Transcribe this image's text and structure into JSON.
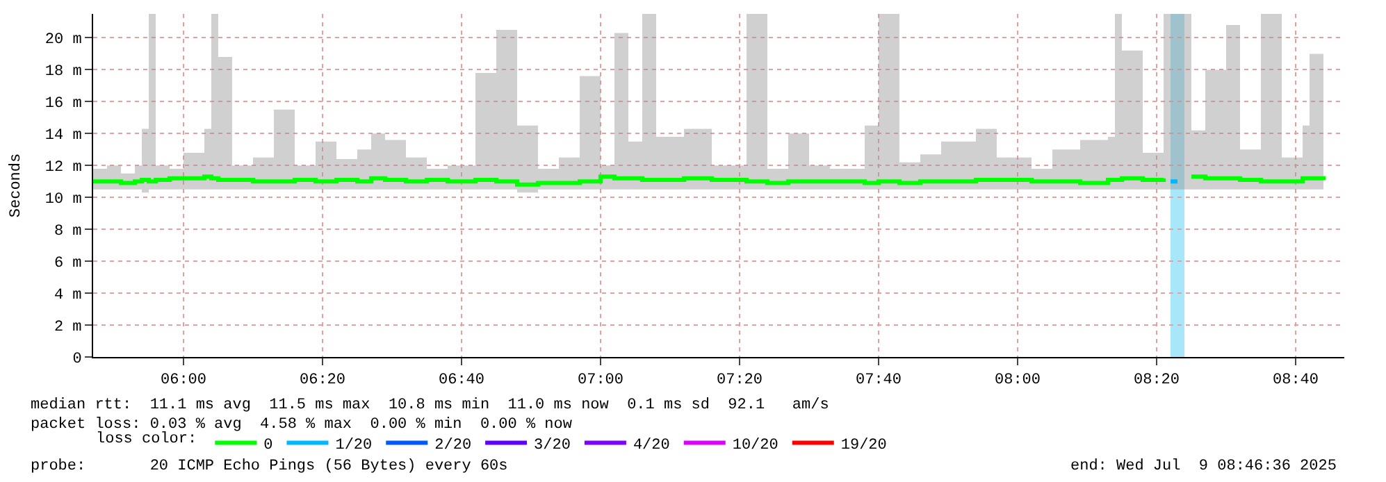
{
  "chart_data": {
    "type": "step",
    "ylabel": "Seconds",
    "legend_title": "loss color:",
    "legend": "bottom",
    "grid": true,
    "xlim": [
      "2025-07-09T05:47",
      "2025-07-09T08:47"
    ],
    "xticks": [
      {
        "value": "2025-07-09T06:00",
        "label": "06:00"
      },
      {
        "value": "2025-07-09T06:20",
        "label": "06:20"
      },
      {
        "value": "2025-07-09T06:40",
        "label": "06:40"
      },
      {
        "value": "2025-07-09T07:00",
        "label": "07:00"
      },
      {
        "value": "2025-07-09T07:20",
        "label": "07:20"
      },
      {
        "value": "2025-07-09T07:40",
        "label": "07:40"
      },
      {
        "value": "2025-07-09T08:00",
        "label": "08:00"
      },
      {
        "value": "2025-07-09T08:20",
        "label": "08:20"
      },
      {
        "value": "2025-07-09T08:40",
        "label": "08:40"
      }
    ],
    "ylim": [
      0,
      21.5
    ],
    "yticks": [
      0,
      {
        "value": 2,
        "label": "2 m"
      },
      {
        "value": 4,
        "label": "4 m"
      },
      {
        "value": 6,
        "label": "6 m"
      },
      {
        "value": 8,
        "label": "8 m"
      },
      {
        "value": 10,
        "label": "10 m"
      },
      {
        "value": 12,
        "label": "12 m"
      },
      {
        "value": 14,
        "label": "14 m"
      },
      {
        "value": 16,
        "label": "16 m"
      },
      {
        "value": 18,
        "label": "18 m"
      },
      {
        "value": 20,
        "label": "20 m"
      }
    ],
    "x": [
      "2025-07-09T05:47",
      "2025-07-09T05:49",
      "2025-07-09T05:51",
      "2025-07-09T05:53",
      "2025-07-09T05:54",
      "2025-07-09T05:55",
      "2025-07-09T05:56",
      "2025-07-09T05:58",
      "2025-07-09T06:00",
      "2025-07-09T06:03",
      "2025-07-09T06:04",
      "2025-07-09T06:05",
      "2025-07-09T06:07",
      "2025-07-09T06:10",
      "2025-07-09T06:13",
      "2025-07-09T06:16",
      "2025-07-09T06:19",
      "2025-07-09T06:22",
      "2025-07-09T06:25",
      "2025-07-09T06:27",
      "2025-07-09T06:29",
      "2025-07-09T06:32",
      "2025-07-09T06:35",
      "2025-07-09T06:38",
      "2025-07-09T06:42",
      "2025-07-09T06:45",
      "2025-07-09T06:48",
      "2025-07-09T06:51",
      "2025-07-09T06:54",
      "2025-07-09T06:57",
      "2025-07-09T07:00",
      "2025-07-09T07:02",
      "2025-07-09T07:04",
      "2025-07-09T07:06",
      "2025-07-09T07:08",
      "2025-07-09T07:12",
      "2025-07-09T07:16",
      "2025-07-09T07:21",
      "2025-07-09T07:24",
      "2025-07-09T07:27",
      "2025-07-09T07:30",
      "2025-07-09T07:33",
      "2025-07-09T07:38",
      "2025-07-09T07:40",
      "2025-07-09T07:43",
      "2025-07-09T07:46",
      "2025-07-09T07:49",
      "2025-07-09T07:54",
      "2025-07-09T07:57",
      "2025-07-09T08:02",
      "2025-07-09T08:05",
      "2025-07-09T08:09",
      "2025-07-09T08:13",
      "2025-07-09T08:14",
      "2025-07-09T08:15",
      "2025-07-09T08:18",
      "2025-07-09T08:21",
      "2025-07-09T08:23",
      "2025-07-09T08:25",
      "2025-07-09T08:27",
      "2025-07-09T08:30",
      "2025-07-09T08:32",
      "2025-07-09T08:35",
      "2025-07-09T08:38",
      "2025-07-09T08:41",
      "2025-07-09T08:42",
      "2025-07-09T08:44"
    ],
    "series": [
      {
        "name": "0",
        "color": "#00ff00",
        "values": [
          11.0,
          11.0,
          10.9,
          11.0,
          11.1,
          11.0,
          11.1,
          11.2,
          11.2,
          11.3,
          11.2,
          11.1,
          11.1,
          11.0,
          11.0,
          11.1,
          11.0,
          11.1,
          11.0,
          11.2,
          11.1,
          11.0,
          11.1,
          11.0,
          11.1,
          11.0,
          10.8,
          10.9,
          10.9,
          11.0,
          11.3,
          11.2,
          11.2,
          11.1,
          11.1,
          11.2,
          11.1,
          11.0,
          10.9,
          11.0,
          11.0,
          11.0,
          10.9,
          11.0,
          10.9,
          11.0,
          11.0,
          11.1,
          11.1,
          11.0,
          11.0,
          10.9,
          11.1,
          11.1,
          11.2,
          11.1,
          11.2,
          null,
          11.3,
          11.2,
          11.2,
          11.1,
          11.0,
          11.0,
          11.2,
          11.2,
          11.1
        ],
        "lower": [
          10.5,
          10.5,
          10.5,
          10.5,
          10.3,
          10.5,
          10.5,
          10.5,
          10.5,
          10.5,
          10.5,
          10.5,
          10.5,
          10.5,
          10.5,
          10.5,
          10.5,
          10.5,
          10.5,
          10.5,
          10.5,
          10.5,
          10.5,
          10.5,
          10.5,
          10.5,
          10.3,
          10.5,
          10.5,
          10.5,
          10.5,
          10.5,
          10.5,
          10.5,
          10.5,
          10.5,
          10.5,
          10.5,
          10.5,
          10.5,
          10.5,
          10.5,
          10.5,
          10.5,
          10.5,
          10.5,
          10.5,
          10.5,
          10.5,
          10.5,
          10.5,
          10.5,
          10.5,
          10.5,
          10.5,
          10.5,
          10.5,
          10.5,
          10.5,
          10.5,
          10.5,
          10.5,
          10.5,
          10.5,
          10.5,
          10.5,
          10.5
        ],
        "upper": [
          11.8,
          12.0,
          11.5,
          12.0,
          14.3,
          21.5,
          12.0,
          11.8,
          12.8,
          14.3,
          21.5,
          18.8,
          12.0,
          12.5,
          15.5,
          12.0,
          13.5,
          12.4,
          13.0,
          14.0,
          13.6,
          12.5,
          11.8,
          12.0,
          17.8,
          20.5,
          14.5,
          11.8,
          12.5,
          17.6,
          12.0,
          20.3,
          13.5,
          21.5,
          13.8,
          14.3,
          12.0,
          21.5,
          11.8,
          14.0,
          12.0,
          11.8,
          14.5,
          21.5,
          12.2,
          12.7,
          13.5,
          14.3,
          12.5,
          11.8,
          13.0,
          13.6,
          13.8,
          21.5,
          19.2,
          12.8,
          21.5,
          21.5,
          14.2,
          18.0,
          20.8,
          13.0,
          21.5,
          12.5,
          14.5,
          19.0,
          12.0
        ]
      },
      {
        "name": "1/20",
        "color": "#00b8ff",
        "x": [
          "2025-07-09T08:22",
          "2025-07-09T08:23"
        ],
        "values": [
          11.0,
          11.0
        ]
      },
      {
        "name": "2/20",
        "color": "#0059ff",
        "values": [
          null,
          null,
          null,
          null,
          null,
          null,
          null,
          null,
          null,
          null,
          null,
          null,
          null,
          null,
          null,
          null,
          null,
          null,
          null,
          null,
          null,
          null,
          null,
          null,
          null,
          null,
          null,
          null,
          null,
          null,
          null,
          null,
          null,
          null,
          null,
          null,
          null,
          null,
          null,
          null,
          null,
          null,
          null,
          null,
          null,
          null,
          null,
          null,
          null,
          null,
          null,
          null,
          null,
          null,
          null,
          null,
          null,
          null,
          null,
          null,
          null,
          null,
          null,
          null,
          null,
          null,
          null
        ]
      },
      {
        "name": "3/20",
        "color": "#5e00ff",
        "values": [
          null,
          null,
          null,
          null,
          null,
          null,
          null,
          null,
          null,
          null,
          null,
          null,
          null,
          null,
          null,
          null,
          null,
          null,
          null,
          null,
          null,
          null,
          null,
          null,
          null,
          null,
          null,
          null,
          null,
          null,
          null,
          null,
          null,
          null,
          null,
          null,
          null,
          null,
          null,
          null,
          null,
          null,
          null,
          null,
          null,
          null,
          null,
          null,
          null,
          null,
          null,
          null,
          null,
          null,
          null,
          null,
          null,
          null,
          null,
          null,
          null,
          null,
          null,
          null,
          null,
          null,
          null
        ]
      },
      {
        "name": "4/20",
        "color": "#7e00ff",
        "values": [
          null,
          null,
          null,
          null,
          null,
          null,
          null,
          null,
          null,
          null,
          null,
          null,
          null,
          null,
          null,
          null,
          null,
          null,
          null,
          null,
          null,
          null,
          null,
          null,
          null,
          null,
          null,
          null,
          null,
          null,
          null,
          null,
          null,
          null,
          null,
          null,
          null,
          null,
          null,
          null,
          null,
          null,
          null,
          null,
          null,
          null,
          null,
          null,
          null,
          null,
          null,
          null,
          null,
          null,
          null,
          null,
          null,
          null,
          null,
          null,
          null,
          null,
          null,
          null,
          null,
          null,
          null
        ]
      },
      {
        "name": "10/20",
        "color": "#dd00ff",
        "values": [
          null,
          null,
          null,
          null,
          null,
          null,
          null,
          null,
          null,
          null,
          null,
          null,
          null,
          null,
          null,
          null,
          null,
          null,
          null,
          null,
          null,
          null,
          null,
          null,
          null,
          null,
          null,
          null,
          null,
          null,
          null,
          null,
          null,
          null,
          null,
          null,
          null,
          null,
          null,
          null,
          null,
          null,
          null,
          null,
          null,
          null,
          null,
          null,
          null,
          null,
          null,
          null,
          null,
          null,
          null,
          null,
          null,
          null,
          null,
          null,
          null,
          null,
          null,
          null,
          null,
          null,
          null
        ]
      },
      {
        "name": "19/20",
        "color": "#ff0000",
        "values": [
          null,
          null,
          null,
          null,
          null,
          null,
          null,
          null,
          null,
          null,
          null,
          null,
          null,
          null,
          null,
          null,
          null,
          null,
          null,
          null,
          null,
          null,
          null,
          null,
          null,
          null,
          null,
          null,
          null,
          null,
          null,
          null,
          null,
          null,
          null,
          null,
          null,
          null,
          null,
          null,
          null,
          null,
          null,
          null,
          null,
          null,
          null,
          null,
          null,
          null,
          null,
          null,
          null,
          null,
          null,
          null,
          null,
          null,
          null,
          null,
          null,
          null,
          null,
          null,
          null,
          null,
          null
        ]
      }
    ],
    "bands": [
      {
        "axis": "x",
        "from": "2025-07-09T08:22",
        "to": "2025-07-09T08:24",
        "color": "#a8e6fa"
      }
    ],
    "annotations": [
      "median rtt:  11.1 ms avg  11.5 ms max  10.8 ms min  11.0 ms now  0.1 ms sd  92.1   am/s",
      "packet loss: 0.03 % avg  4.58 % max  0.00 % min  0.00 % now",
      "probe:       20 ICMP Echo Pings (56 Bytes) every 60s",
      "end: Wed Jul  9 08:46:36 2025"
    ]
  }
}
